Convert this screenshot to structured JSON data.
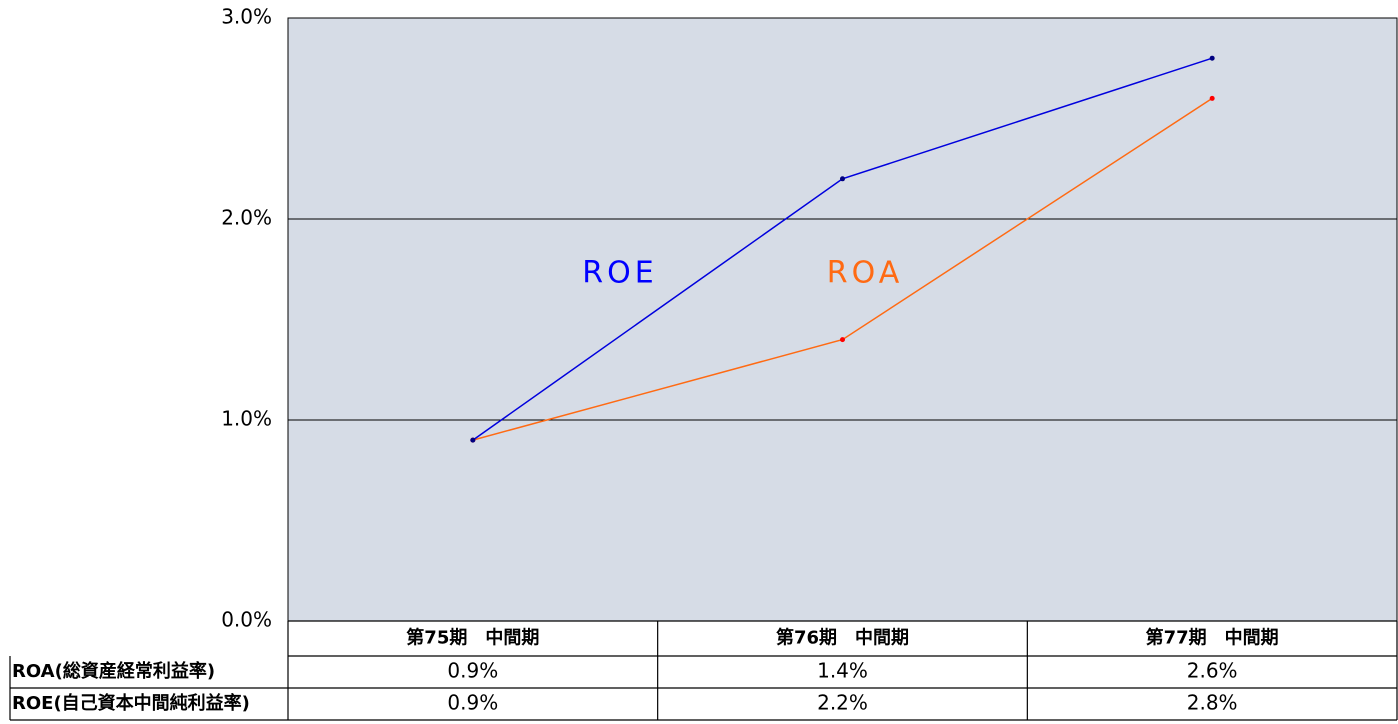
{
  "chart_data": {
    "type": "line",
    "categories": [
      "第75期　中間期",
      "第76期　中間期",
      "第77期　中間期"
    ],
    "series": [
      {
        "name": "ROA(総資産経常利益率)",
        "color": "#ff6a13",
        "marker_color": "#ff0000",
        "values": [
          0.9,
          1.4,
          2.6
        ],
        "value_labels": [
          "0.9%",
          "1.4%",
          "2.6%"
        ]
      },
      {
        "name": "ROE(自己資本中間純利益率)",
        "color": "#0000dd",
        "marker_color": "#000080",
        "values": [
          0.9,
          2.2,
          2.8
        ],
        "value_labels": [
          "0.9%",
          "2.2%",
          "2.8%"
        ]
      }
    ],
    "annotations": [
      {
        "text": "ROE",
        "color": "#0000ff"
      },
      {
        "text": "ROA",
        "color": "#ff6a13"
      }
    ],
    "ylim": [
      0,
      3
    ],
    "yticks": [
      {
        "value": 0,
        "label": "0.0%"
      },
      {
        "value": 1,
        "label": "1.0%"
      },
      {
        "value": 2,
        "label": "2.0%"
      },
      {
        "value": 3,
        "label": "3.0%"
      }
    ],
    "grid": true,
    "plot_background": "#d6dce6"
  }
}
